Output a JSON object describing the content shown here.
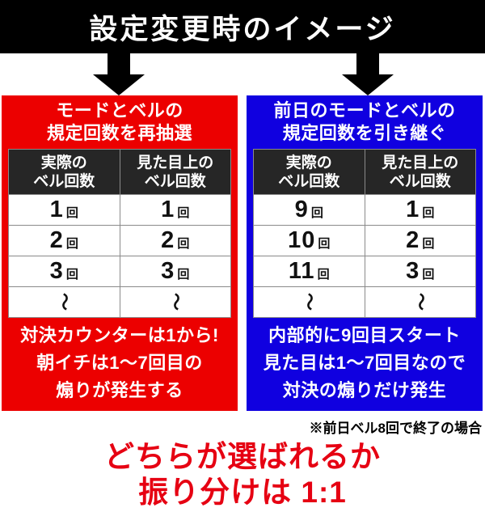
{
  "banner": {
    "title": "設定変更時のイメージ"
  },
  "colors": {
    "banner_bg": "#000000",
    "red_accent": "#ec0000",
    "blue_accent": "#1000e0",
    "conclusion_red": "#e60012",
    "table_header_bg": "#262626"
  },
  "panels": [
    {
      "id": "redraw",
      "accent": "#ec0000",
      "title_line1": "モードとベルの",
      "title_line2": "規定回数を再抽選",
      "table": {
        "unit": "回",
        "tilde": "〜",
        "col1_line1": "実際の",
        "col1_line2": "ベル回数",
        "col2_line1": "見た目上の",
        "col2_line2": "ベル回数",
        "rows": [
          [
            "1",
            "1"
          ],
          [
            "2",
            "2"
          ],
          [
            "3",
            "3"
          ]
        ]
      },
      "note_line1": "対決カウンターは1から!",
      "note_line2": "朝イチは1〜7回目の",
      "note_line3": "煽りが発生する"
    },
    {
      "id": "carryover",
      "accent": "#1000e0",
      "title_line1": "前日のモードとベルの",
      "title_line2": "規定回数を引き継ぐ",
      "table": {
        "unit": "回",
        "tilde": "〜",
        "col1_line1": "実際の",
        "col1_line2": "ベル回数",
        "col2_line1": "見た目上の",
        "col2_line2": "ベル回数",
        "rows": [
          [
            "9",
            "1"
          ],
          [
            "10",
            "2"
          ],
          [
            "11",
            "3"
          ]
        ]
      },
      "note_line1": "内部的に9回目スタート",
      "note_line2": "見た目は1〜7回目なので",
      "note_line3": "対決の煽りだけ発生"
    }
  ],
  "footnote": "※前日ベル8回で終了の場合",
  "conclusion": {
    "line1": "どちらが選ばれるか",
    "line2": "振り分けは 1:1"
  }
}
